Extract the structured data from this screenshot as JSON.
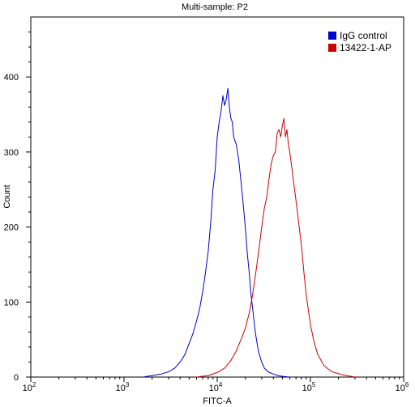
{
  "chart_data": {
    "type": "line",
    "title": "Multi-sample: P2",
    "xlabel": "FITC-A",
    "ylabel": "Count",
    "xscale": "log",
    "xlim": [
      100,
      1000000
    ],
    "ylim": [
      0,
      480
    ],
    "x_ticks": [
      100,
      1000,
      10000,
      100000,
      1000000
    ],
    "x_tick_labels": [
      {
        "base": "10",
        "exp": "2"
      },
      {
        "base": "10",
        "exp": "3"
      },
      {
        "base": "10",
        "exp": "4"
      },
      {
        "base": "10",
        "exp": "5"
      },
      {
        "base": "10",
        "exp": "6"
      }
    ],
    "y_ticks": [
      0,
      100,
      200,
      300,
      400
    ],
    "y_tick_labels": [
      "0",
      "100",
      "200",
      "300",
      "400"
    ],
    "grid": false,
    "legend_position": "top-right",
    "series": [
      {
        "name": "IgG control",
        "color": "#0000cc",
        "x": [
          1600,
          2000,
          2500,
          3000,
          3500,
          4000,
          4500,
          5000,
          5500,
          6000,
          6500,
          7000,
          7500,
          8000,
          8500,
          9000,
          9500,
          10000,
          10500,
          11000,
          11500,
          12000,
          12500,
          13000,
          13500,
          14000,
          14500,
          15000,
          16000,
          17000,
          18000,
          19000,
          20000,
          21000,
          22000,
          23000,
          24000,
          25000,
          26000,
          27000,
          28000,
          30000,
          32000,
          35000,
          40000,
          45000,
          50000,
          60000
        ],
        "y": [
          0,
          2,
          4,
          7,
          12,
          20,
          30,
          45,
          58,
          75,
          92,
          115,
          140,
          168,
          205,
          250,
          275,
          320,
          340,
          355,
          375,
          362,
          370,
          385,
          360,
          345,
          340,
          320,
          310,
          290,
          260,
          230,
          200,
          165,
          140,
          110,
          92,
          70,
          55,
          42,
          32,
          20,
          12,
          7,
          4,
          2,
          1,
          0
        ]
      },
      {
        "name": "13422-1-AP",
        "color": "#cc0000",
        "x": [
          6000,
          8000,
          10000,
          12000,
          14000,
          16000,
          18000,
          20000,
          22000,
          24000,
          26000,
          28000,
          30000,
          32000,
          34000,
          36000,
          38000,
          40000,
          42000,
          44000,
          46000,
          48000,
          50000,
          52000,
          54000,
          56000,
          58000,
          60000,
          63000,
          66000,
          70000,
          75000,
          80000,
          85000,
          90000,
          100000,
          110000,
          120000,
          140000,
          170000,
          220000,
          300000
        ],
        "y": [
          0,
          2,
          6,
          12,
          22,
          35,
          50,
          65,
          85,
          110,
          140,
          170,
          200,
          225,
          240,
          265,
          285,
          295,
          300,
          325,
          330,
          320,
          335,
          345,
          320,
          330,
          310,
          300,
          280,
          260,
          235,
          205,
          175,
          140,
          110,
          70,
          45,
          30,
          15,
          7,
          3,
          0
        ]
      }
    ]
  }
}
